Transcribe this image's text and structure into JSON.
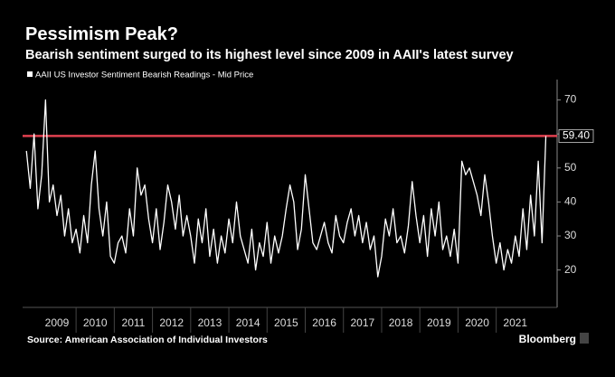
{
  "chart_data": {
    "type": "line",
    "title": "Pessimism Peak?",
    "subtitle": "Bearish sentiment surged to its highest level since 2009 in AAII's latest survey",
    "source": "Source: American Association of Individual Investors",
    "brand": "Bloomberg",
    "x": [
      2008.7,
      2008.8,
      2008.9,
      2009.0,
      2009.1,
      2009.2,
      2009.3,
      2009.4,
      2009.5,
      2009.6,
      2009.7,
      2009.8,
      2009.9,
      2010.0,
      2010.1,
      2010.2,
      2010.3,
      2010.4,
      2010.5,
      2010.6,
      2010.7,
      2010.8,
      2010.9,
      2011.0,
      2011.1,
      2011.2,
      2011.3,
      2011.4,
      2011.5,
      2011.6,
      2011.7,
      2011.8,
      2011.9,
      2012.0,
      2012.1,
      2012.2,
      2012.3,
      2012.4,
      2012.5,
      2012.6,
      2012.7,
      2012.8,
      2012.9,
      2013.0,
      2013.1,
      2013.2,
      2013.3,
      2013.4,
      2013.5,
      2013.6,
      2013.7,
      2013.8,
      2013.9,
      2014.0,
      2014.1,
      2014.2,
      2014.3,
      2014.4,
      2014.5,
      2014.6,
      2014.7,
      2014.8,
      2014.9,
      2015.0,
      2015.1,
      2015.2,
      2015.3,
      2015.4,
      2015.5,
      2015.6,
      2015.7,
      2015.8,
      2015.9,
      2016.0,
      2016.1,
      2016.2,
      2016.3,
      2016.4,
      2016.5,
      2016.6,
      2016.7,
      2016.8,
      2016.9,
      2017.0,
      2017.1,
      2017.2,
      2017.3,
      2017.4,
      2017.5,
      2017.6,
      2017.7,
      2017.8,
      2017.9,
      2018.0,
      2018.1,
      2018.2,
      2018.3,
      2018.4,
      2018.5,
      2018.6,
      2018.7,
      2018.8,
      2018.9,
      2019.0,
      2019.1,
      2019.2,
      2019.3,
      2019.4,
      2019.5,
      2019.6,
      2019.7,
      2019.8,
      2019.9,
      2020.0,
      2020.1,
      2020.2,
      2020.3,
      2020.4,
      2020.5,
      2020.6,
      2020.7,
      2020.8,
      2020.9,
      2021.0,
      2021.1,
      2021.2,
      2021.3,
      2021.4,
      2021.5,
      2021.6,
      2021.7,
      2021.8,
      2021.9,
      2022.0,
      2022.1,
      2022.2,
      2022.3
    ],
    "series": [
      {
        "name": "AAII US Investor Sentiment Bearish Readings - Mid Price",
        "color": "#ffffff",
        "values": [
          55,
          44,
          60,
          38,
          48,
          70,
          40,
          45,
          36,
          42,
          30,
          38,
          28,
          32,
          25,
          36,
          28,
          45,
          55,
          38,
          30,
          40,
          24,
          22,
          28,
          30,
          25,
          38,
          30,
          50,
          42,
          45,
          35,
          28,
          38,
          26,
          34,
          45,
          40,
          32,
          42,
          30,
          36,
          30,
          22,
          35,
          28,
          38,
          24,
          32,
          22,
          30,
          25,
          35,
          28,
          40,
          30,
          26,
          22,
          32,
          20,
          28,
          24,
          34,
          22,
          30,
          25,
          30,
          38,
          45,
          40,
          26,
          32,
          48,
          38,
          28,
          26,
          30,
          34,
          28,
          25,
          36,
          30,
          28,
          34,
          38,
          30,
          36,
          28,
          34,
          26,
          30,
          18,
          24,
          35,
          30,
          38,
          28,
          30,
          25,
          33,
          46,
          36,
          28,
          36,
          24,
          38,
          30,
          40,
          26,
          30,
          24,
          32,
          22,
          52,
          48,
          50,
          46,
          42,
          36,
          48,
          40,
          30,
          22,
          28,
          20,
          26,
          22,
          30,
          24,
          38,
          26,
          42,
          30,
          52,
          28,
          59.4
        ]
      }
    ],
    "xlim": [
      2008.6,
      2022.5
    ],
    "xticks": [
      {
        "value": 2009.5,
        "label": "2009"
      },
      {
        "value": 2010.5,
        "label": "2010"
      },
      {
        "value": 2011.5,
        "label": "2011"
      },
      {
        "value": 2012.5,
        "label": "2012"
      },
      {
        "value": 2013.5,
        "label": "2013"
      },
      {
        "value": 2014.5,
        "label": "2014"
      },
      {
        "value": 2015.5,
        "label": "2015"
      },
      {
        "value": 2016.5,
        "label": "2016"
      },
      {
        "value": 2017.5,
        "label": "2017"
      },
      {
        "value": 2018.5,
        "label": "2018"
      },
      {
        "value": 2019.5,
        "label": "2019"
      },
      {
        "value": 2020.5,
        "label": "2020"
      },
      {
        "value": 2021.5,
        "label": "2021"
      }
    ],
    "ylim": [
      9,
      76
    ],
    "yticks": [
      20,
      30,
      40,
      50,
      60,
      70
    ],
    "reference_line": {
      "value": 59.4,
      "label": "59.40",
      "color": "#e0414f"
    }
  }
}
